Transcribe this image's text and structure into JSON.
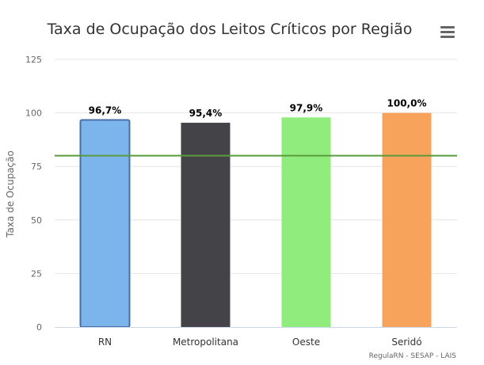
{
  "chart_data": {
    "type": "bar",
    "title": "Taxa de Ocupação dos Leitos Críticos por Região",
    "xlabel": "",
    "ylabel": "Taxa de Ocupação",
    "ylim": [
      0,
      125
    ],
    "y_ticks": [
      0,
      25,
      50,
      75,
      100,
      125
    ],
    "y_tick_labels": [
      "0",
      "25",
      "50",
      "75",
      "100",
      "125"
    ],
    "grid": true,
    "categories": [
      "RN",
      "Metropolitana",
      "Oeste",
      "Seridó"
    ],
    "values": [
      96.7,
      95.4,
      97.9,
      100.0
    ],
    "data_labels": [
      "96,7%",
      "95,4%",
      "97,9%",
      "100,0%"
    ],
    "colors": [
      "#7cb5ec",
      "#434348",
      "#90ed7d",
      "#f7a35c"
    ],
    "selected_index": 0,
    "selected_border_color": "#4a6fa5",
    "reference_line": {
      "value": 80,
      "color": "#5a9c3d"
    },
    "credits": "RegulaRN - SESAP - LAIS"
  },
  "menu": {
    "icon": "hamburger-menu-icon"
  }
}
